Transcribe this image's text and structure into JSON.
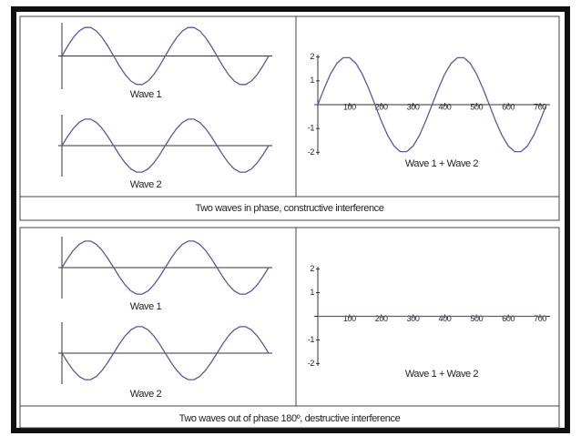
{
  "captions": [
    "Two waves in phase, constructive interference",
    "Two waves out of phase 180º, destructive interference"
  ],
  "chart_data": [
    {
      "type": "line",
      "title": "Wave 1",
      "color": "#5a5a9a",
      "xlim": [
        0,
        720
      ],
      "ylim": [
        -1.15,
        1.15
      ],
      "x": [
        0,
        20,
        40,
        60,
        80,
        100,
        120,
        140,
        160,
        180,
        200,
        220,
        240,
        260,
        280,
        300,
        320,
        340,
        360,
        380,
        400,
        420,
        440,
        460,
        480,
        500,
        520,
        540,
        560,
        580,
        600,
        620,
        640,
        660,
        680,
        700,
        720
      ],
      "values": [
        0,
        0.342,
        0.643,
        0.866,
        0.985,
        0.985,
        0.866,
        0.643,
        0.342,
        0,
        -0.342,
        -0.643,
        -0.866,
        -0.985,
        -0.985,
        -0.866,
        -0.643,
        -0.342,
        0,
        0.342,
        0.643,
        0.866,
        0.985,
        0.985,
        0.866,
        0.643,
        0.342,
        0,
        -0.342,
        -0.643,
        -0.866,
        -0.985,
        -0.985,
        -0.866,
        -0.643,
        -0.342,
        0
      ]
    },
    {
      "type": "line",
      "title": "Wave 2",
      "color": "#5a5a9a",
      "xlim": [
        0,
        720
      ],
      "ylim": [
        -1.15,
        1.15
      ],
      "x": [
        0,
        20,
        40,
        60,
        80,
        100,
        120,
        140,
        160,
        180,
        200,
        220,
        240,
        260,
        280,
        300,
        320,
        340,
        360,
        380,
        400,
        420,
        440,
        460,
        480,
        500,
        520,
        540,
        560,
        580,
        600,
        620,
        640,
        660,
        680,
        700,
        720
      ],
      "values": [
        0,
        0.342,
        0.643,
        0.866,
        0.985,
        0.985,
        0.866,
        0.643,
        0.342,
        0,
        -0.342,
        -0.643,
        -0.866,
        -0.985,
        -0.985,
        -0.866,
        -0.643,
        -0.342,
        0,
        0.342,
        0.643,
        0.866,
        0.985,
        0.985,
        0.866,
        0.643,
        0.342,
        0,
        -0.342,
        -0.643,
        -0.866,
        -0.985,
        -0.985,
        -0.866,
        -0.643,
        -0.342,
        0
      ]
    },
    {
      "type": "line",
      "title": "Wave 1 + Wave 2",
      "color": "#5a5a9a",
      "xlim": [
        0,
        720
      ],
      "ylim": [
        -2.1,
        2.1
      ],
      "xticks": [
        100,
        200,
        300,
        400,
        500,
        600,
        700
      ],
      "yticks": [
        2,
        1,
        -1,
        -2
      ],
      "x": [
        0,
        20,
        40,
        60,
        80,
        100,
        120,
        140,
        160,
        180,
        200,
        220,
        240,
        260,
        280,
        300,
        320,
        340,
        360,
        380,
        400,
        420,
        440,
        460,
        480,
        500,
        520,
        540,
        560,
        580,
        600,
        620,
        640,
        660,
        680,
        700,
        720
      ],
      "values": [
        0,
        0.684,
        1.286,
        1.732,
        1.97,
        1.97,
        1.732,
        1.286,
        0.684,
        0,
        -0.684,
        -1.286,
        -1.732,
        -1.97,
        -1.97,
        -1.732,
        -1.286,
        -0.684,
        0,
        0.684,
        1.286,
        1.732,
        1.97,
        1.97,
        1.732,
        1.286,
        0.684,
        0,
        -0.684,
        -1.286,
        -1.732,
        -1.97,
        -1.97,
        -1.732,
        -1.286,
        -0.684,
        0
      ]
    },
    {
      "type": "line",
      "title": "Wave 1",
      "color": "#5a5a9a",
      "xlim": [
        0,
        720
      ],
      "ylim": [
        -1.15,
        1.15
      ],
      "x": [
        0,
        20,
        40,
        60,
        80,
        100,
        120,
        140,
        160,
        180,
        200,
        220,
        240,
        260,
        280,
        300,
        320,
        340,
        360,
        380,
        400,
        420,
        440,
        460,
        480,
        500,
        520,
        540,
        560,
        580,
        600,
        620,
        640,
        660,
        680,
        700,
        720
      ],
      "values": [
        0,
        0.342,
        0.643,
        0.866,
        0.985,
        0.985,
        0.866,
        0.643,
        0.342,
        0,
        -0.342,
        -0.643,
        -0.866,
        -0.985,
        -0.985,
        -0.866,
        -0.643,
        -0.342,
        0,
        0.342,
        0.643,
        0.866,
        0.985,
        0.985,
        0.866,
        0.643,
        0.342,
        0,
        -0.342,
        -0.643,
        -0.866,
        -0.985,
        -0.985,
        -0.866,
        -0.643,
        -0.342,
        0
      ]
    },
    {
      "type": "line",
      "title": "Wave 2",
      "color": "#5a5a9a",
      "xlim": [
        0,
        720
      ],
      "ylim": [
        -1.15,
        1.15
      ],
      "x": [
        0,
        20,
        40,
        60,
        80,
        100,
        120,
        140,
        160,
        180,
        200,
        220,
        240,
        260,
        280,
        300,
        320,
        340,
        360,
        380,
        400,
        420,
        440,
        460,
        480,
        500,
        520,
        540,
        560,
        580,
        600,
        620,
        640,
        660,
        680,
        700,
        720
      ],
      "values": [
        0,
        -0.342,
        -0.643,
        -0.866,
        -0.985,
        -0.985,
        -0.866,
        -0.643,
        -0.342,
        0,
        0.342,
        0.643,
        0.866,
        0.985,
        0.985,
        0.866,
        0.643,
        0.342,
        0,
        -0.342,
        -0.643,
        -0.866,
        -0.985,
        -0.985,
        -0.866,
        -0.643,
        -0.342,
        0,
        0.342,
        0.643,
        0.866,
        0.985,
        0.985,
        0.866,
        0.643,
        0.342,
        0
      ]
    },
    {
      "type": "line",
      "title": "Wave 1 + Wave 2",
      "color": "#5a5a9a",
      "xlim": [
        0,
        720
      ],
      "ylim": [
        -2.1,
        2.1
      ],
      "xticks": [
        100,
        200,
        300,
        400,
        500,
        600,
        700
      ],
      "yticks": [
        2,
        1,
        -1,
        -2
      ],
      "x": [
        0,
        20,
        40,
        60,
        80,
        100,
        120,
        140,
        160,
        180,
        200,
        220,
        240,
        260,
        280,
        300,
        320,
        340,
        360,
        380,
        400,
        420,
        440,
        460,
        480,
        500,
        520,
        540,
        560,
        580,
        600,
        620,
        640,
        660,
        680,
        700,
        720
      ],
      "values": [
        0,
        0,
        0,
        0,
        0,
        0,
        0,
        0,
        0,
        0,
        0,
        0,
        0,
        0,
        0,
        0,
        0,
        0,
        0,
        0,
        0,
        0,
        0,
        0,
        0,
        0,
        0,
        0,
        0,
        0,
        0,
        0,
        0,
        0,
        0,
        0,
        0
      ]
    }
  ]
}
